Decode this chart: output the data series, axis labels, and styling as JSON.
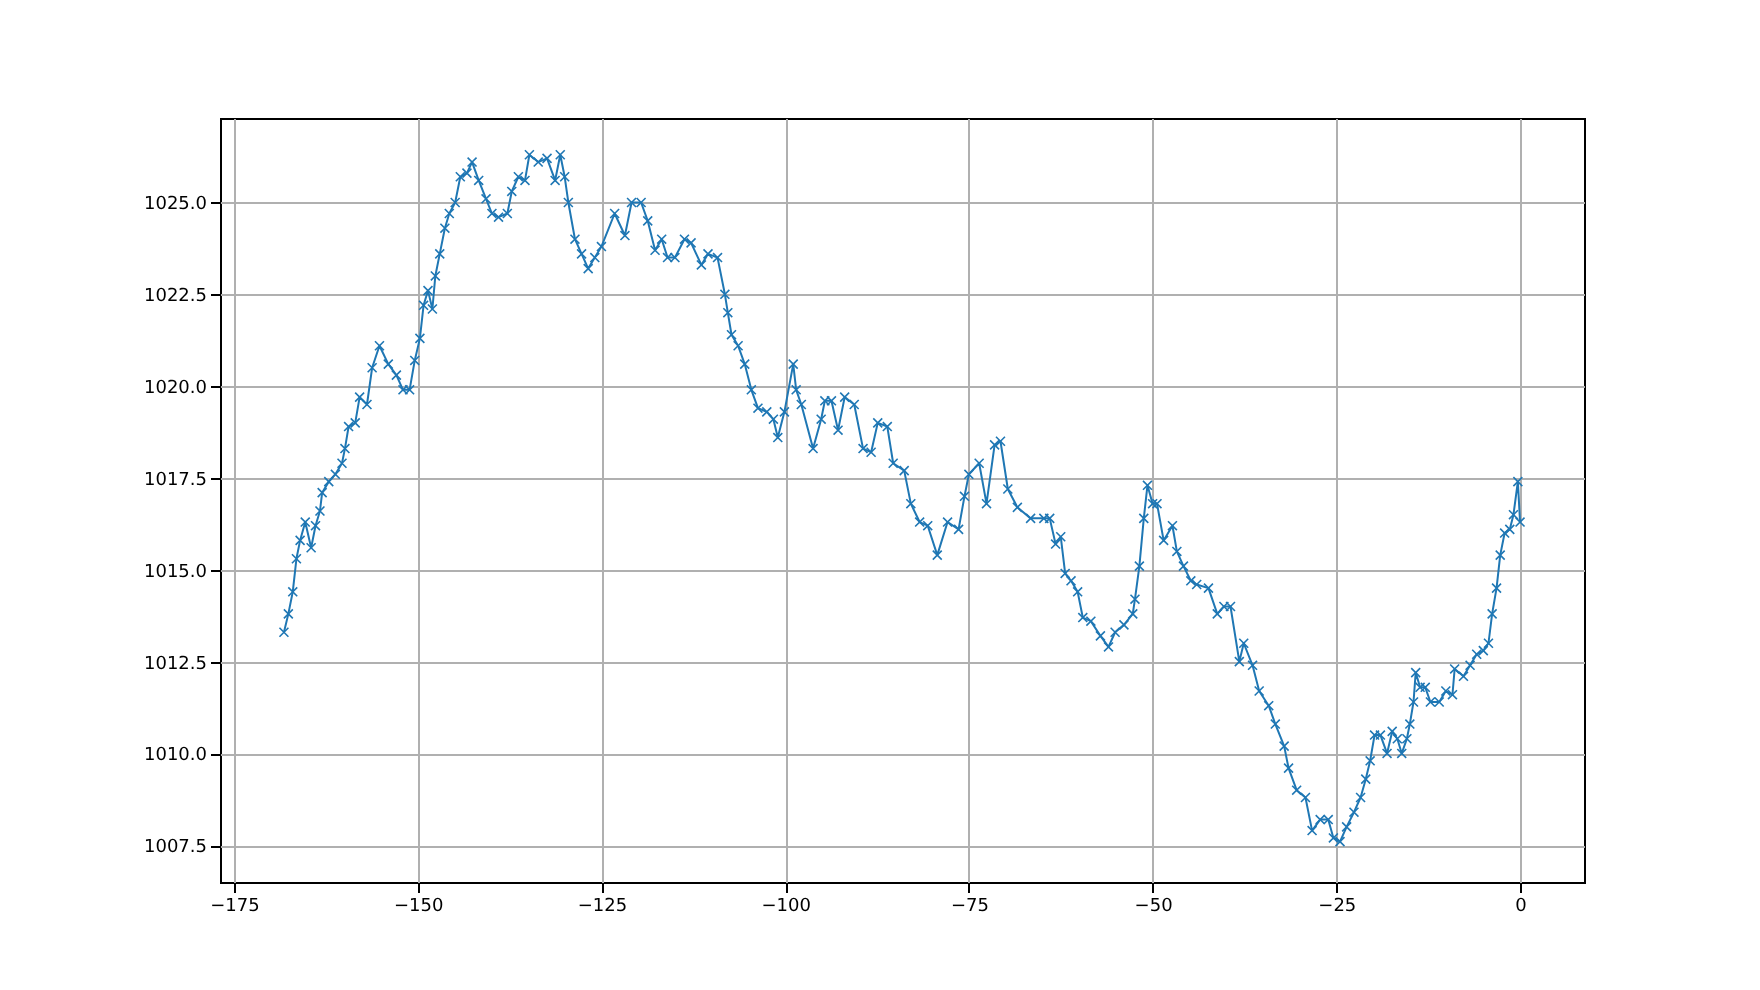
{
  "chart_data": {
    "type": "line",
    "marker": "cross",
    "line_style": "solid",
    "grid": true,
    "xlim": [
      -176.9,
      8.7
    ],
    "ylim": [
      1006.5,
      1027.3
    ],
    "xticks": [
      -175,
      -150,
      -125,
      -100,
      -75,
      -50,
      -25,
      0
    ],
    "yticks": [
      {
        "value": 1007.5,
        "label": "1007.5"
      },
      {
        "value": 1010,
        "label": "1010.0"
      },
      {
        "value": 1012.5,
        "label": "1012.5"
      },
      {
        "value": 1015,
        "label": "1015.0"
      },
      {
        "value": 1017.5,
        "label": "1017.5"
      },
      {
        "value": 1020,
        "label": "1020.0"
      },
      {
        "value": 1022.5,
        "label": "1022.5"
      },
      {
        "value": 1025,
        "label": "1025.0"
      }
    ],
    "x": [
      -168.2,
      -167.6,
      -167.0,
      -166.5,
      -166.0,
      -165.3,
      -164.5,
      -163.9,
      -163.3,
      -163.0,
      -162.1,
      -161.2,
      -160.3,
      -159.9,
      -159.4,
      -158.5,
      -157.9,
      -156.9,
      -156.2,
      -155.2,
      -154.0,
      -152.9,
      -152.0,
      -151.1,
      -150.4,
      -149.7,
      -149.2,
      -148.6,
      -148.0,
      -147.6,
      -147.0,
      -146.3,
      -145.7,
      -144.9,
      -144.2,
      -143.3,
      -142.6,
      -141.7,
      -140.7,
      -139.9,
      -139.0,
      -137.8,
      -137.2,
      -136.3,
      -135.4,
      -134.8,
      -133.6,
      -132.4,
      -131.3,
      -130.6,
      -130.0,
      -129.5,
      -128.6,
      -127.7,
      -126.8,
      -125.9,
      -125.0,
      -123.2,
      -121.8,
      -120.9,
      -119.6,
      -118.7,
      -117.7,
      -116.8,
      -116.0,
      -115.0,
      -113.7,
      -112.8,
      -111.4,
      -110.5,
      -109.2,
      -108.2,
      -107.8,
      -107.3,
      -106.4,
      -105.5,
      -104.6,
      -103.7,
      -102.5,
      -101.6,
      -101.0,
      -100.1,
      -98.9,
      -98.5,
      -97.8,
      -96.2,
      -95.1,
      -94.6,
      -93.7,
      -92.8,
      -91.9,
      -90.6,
      -89.4,
      -88.3,
      -87.4,
      -86.1,
      -85.3,
      -83.8,
      -82.9,
      -81.7,
      -80.6,
      -79.3,
      -77.9,
      -76.4,
      -75.6,
      -75.0,
      -73.6,
      -72.6,
      -71.5,
      -70.7,
      -69.7,
      -68.4,
      -66.6,
      -64.8,
      -64.0,
      -63.2,
      -62.5,
      -61.9,
      -61.1,
      -60.2,
      -59.5,
      -58.4,
      -57.1,
      -56.0,
      -55.1,
      -53.9,
      -52.7,
      -52.4,
      -51.8,
      -51.2,
      -50.7,
      -50.0,
      -49.4,
      -48.5,
      -47.3,
      -46.7,
      -45.8,
      -44.8,
      -44.0,
      -42.4,
      -41.2,
      -40.3,
      -39.4,
      -38.2,
      -37.6,
      -36.4,
      -35.5,
      -34.2,
      -33.3,
      -32.1,
      -31.5,
      -30.4,
      -29.2,
      -28.3,
      -27.2,
      -26.1,
      -25.4,
      -24.5,
      -23.6,
      -22.6,
      -21.7,
      -21.0,
      -20.4,
      -19.8,
      -19.0,
      -18.1,
      -17.4,
      -16.7,
      -16.1,
      -15.4,
      -15.0,
      -14.5,
      -14.2,
      -13.6,
      -12.9,
      -12.2,
      -11.0,
      -10.1,
      -9.2,
      -8.9,
      -7.7,
      -6.8,
      -5.9,
      -5.0,
      -4.3,
      -3.8,
      -3.2,
      -2.7,
      -2.1,
      -1.4,
      -0.9,
      -0.3,
      0.0
    ],
    "series": [
      {
        "color": "#1f77b4",
        "values": [
          1013.3,
          1013.8,
          1014.4,
          1015.3,
          1015.8,
          1016.3,
          1015.6,
          1016.2,
          1016.6,
          1017.1,
          1017.4,
          1017.6,
          1017.9,
          1018.3,
          1018.9,
          1019.0,
          1019.7,
          1019.5,
          1020.5,
          1021.1,
          1020.6,
          1020.3,
          1019.9,
          1019.9,
          1020.7,
          1021.3,
          1022.2,
          1022.6,
          1022.1,
          1023.0,
          1023.6,
          1024.3,
          1024.7,
          1025.0,
          1025.7,
          1025.8,
          1026.1,
          1025.6,
          1025.1,
          1024.7,
          1024.6,
          1024.7,
          1025.3,
          1025.7,
          1025.6,
          1026.3,
          1026.1,
          1026.2,
          1025.6,
          1026.3,
          1025.7,
          1025.0,
          1024.0,
          1023.6,
          1023.2,
          1023.5,
          1023.8,
          1024.7,
          1024.1,
          1025.0,
          1025.0,
          1024.5,
          1023.7,
          1024.0,
          1023.5,
          1023.5,
          1024.0,
          1023.9,
          1023.3,
          1023.6,
          1023.5,
          1022.5,
          1022.0,
          1021.4,
          1021.1,
          1020.6,
          1019.9,
          1019.4,
          1019.3,
          1019.1,
          1018.6,
          1019.3,
          1020.6,
          1019.9,
          1019.5,
          1018.3,
          1019.1,
          1019.6,
          1019.6,
          1018.8,
          1019.7,
          1019.5,
          1018.3,
          1018.2,
          1019.0,
          1018.9,
          1017.9,
          1017.7,
          1016.8,
          1016.3,
          1016.2,
          1015.4,
          1016.3,
          1016.1,
          1017.0,
          1017.6,
          1017.9,
          1016.8,
          1018.4,
          1018.5,
          1017.2,
          1016.7,
          1016.4,
          1016.4,
          1016.4,
          1015.7,
          1015.9,
          1014.9,
          1014.7,
          1014.4,
          1013.7,
          1013.6,
          1013.2,
          1012.9,
          1013.3,
          1013.5,
          1013.8,
          1014.2,
          1015.1,
          1016.4,
          1017.3,
          1016.8,
          1016.8,
          1015.8,
          1016.2,
          1015.5,
          1015.1,
          1014.7,
          1014.6,
          1014.5,
          1013.8,
          1014.0,
          1014.0,
          1012.5,
          1013.0,
          1012.4,
          1011.7,
          1011.3,
          1010.8,
          1010.2,
          1009.6,
          1009.0,
          1008.8,
          1007.9,
          1008.2,
          1008.2,
          1007.7,
          1007.6,
          1008.0,
          1008.4,
          1008.8,
          1009.3,
          1009.8,
          1010.5,
          1010.5,
          1010.0,
          1010.6,
          1010.4,
          1010.0,
          1010.4,
          1010.8,
          1011.4,
          1012.2,
          1011.8,
          1011.8,
          1011.4,
          1011.4,
          1011.7,
          1011.6,
          1012.3,
          1012.1,
          1012.4,
          1012.7,
          1012.8,
          1013.0,
          1013.8,
          1014.5,
          1015.4,
          1016.0,
          1016.1,
          1016.5,
          1017.4,
          1016.3
        ]
      }
    ]
  }
}
